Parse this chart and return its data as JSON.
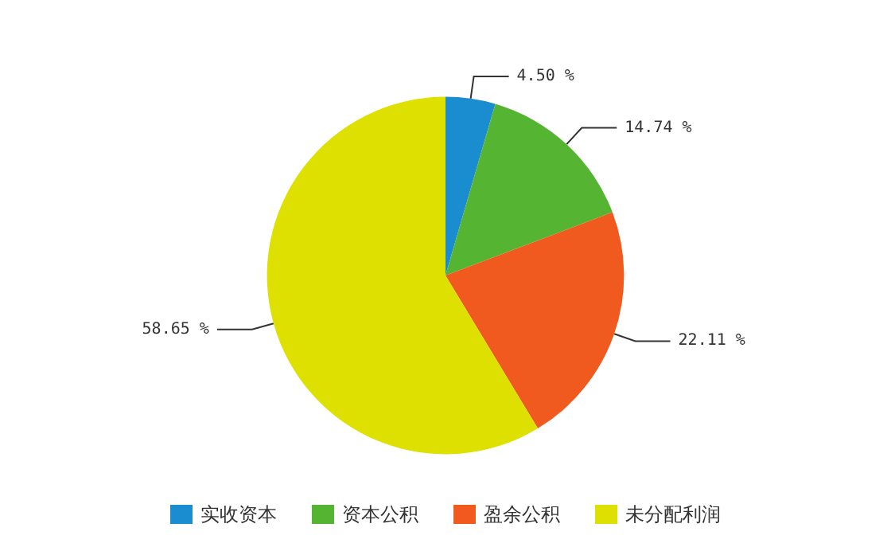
{
  "chart_data": {
    "type": "pie",
    "categories": [
      "实收资本",
      "资本公积",
      "盈余公积",
      "未分配利润"
    ],
    "values": [
      4.5,
      14.74,
      22.11,
      58.65
    ],
    "colors": [
      "#1a8dd0",
      "#55b533",
      "#f05a1e",
      "#dde000"
    ],
    "value_labels": [
      "4.50 %",
      "14.74 %",
      "22.11 %",
      "58.65 %"
    ],
    "legend": "bottom"
  }
}
